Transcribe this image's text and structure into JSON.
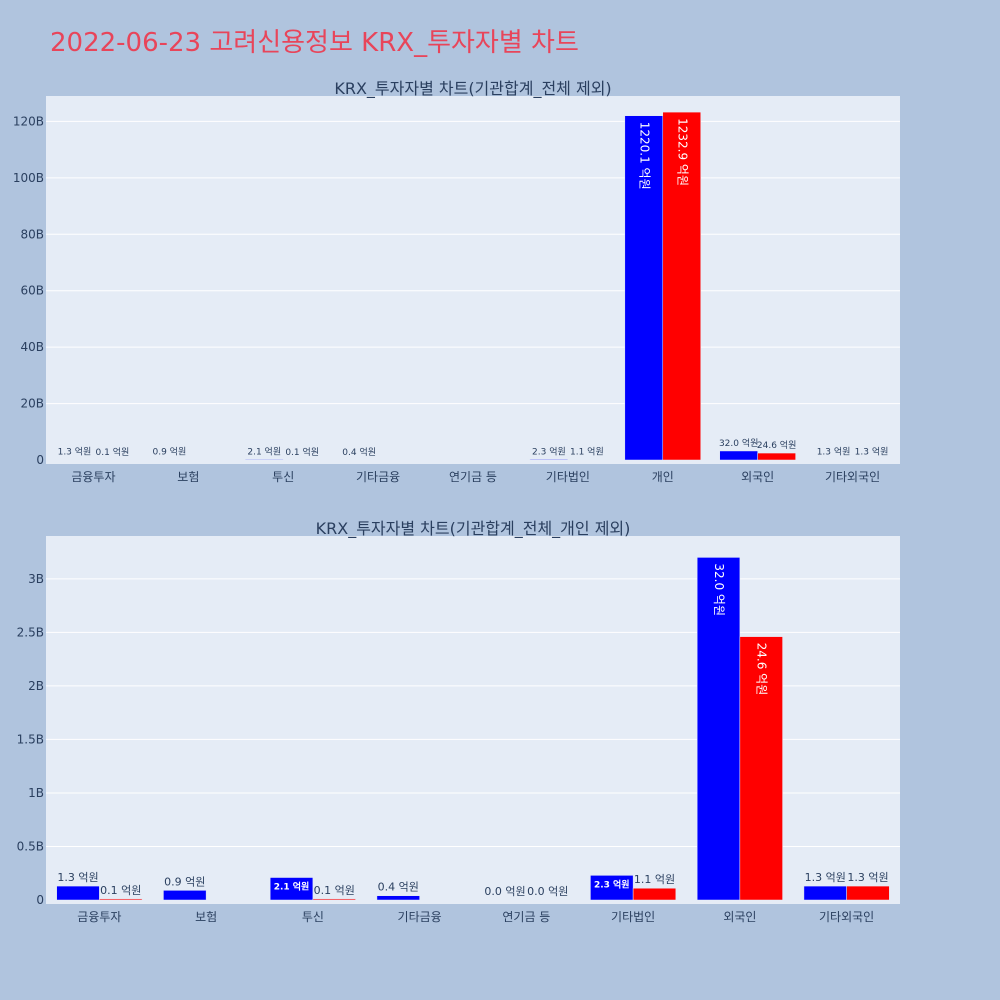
{
  "page": {
    "title": "2022-06-23 고려신용정보 KRX_투자자별 차트"
  },
  "colors": {
    "buy": "#0000ff",
    "sell": "#ff0000",
    "plot_bg": "#e5ecf6",
    "paper_bg": "#b0c4de",
    "title": "#e8455a"
  },
  "chart_data": [
    {
      "type": "bar",
      "title": "KRX_투자자별 차트(기관합계_전체 제외)",
      "categories": [
        "금융투자",
        "보험",
        "투신",
        "기타금융",
        "연기금 등",
        "기타법인",
        "개인",
        "외국인",
        "기타외국인"
      ],
      "series": [
        {
          "values": [
            130000000,
            90000000,
            210000000,
            40000000,
            0,
            230000000,
            122010000000,
            3200000000,
            130000000
          ],
          "labels": [
            "1.3 억원",
            "0.9 억원",
            "2.1 억원",
            "0.4 억원",
            "",
            "2.3 억원",
            "1220.1 억원",
            "32.0 억원",
            "1.3 억원"
          ]
        },
        {
          "values": [
            10000000,
            0,
            10000000,
            0,
            0,
            110000000,
            123290000000,
            2460000000,
            130000000
          ],
          "labels": [
            "0.1 억원",
            "",
            "0.1 억원",
            "",
            "",
            "1.1 억원",
            "1232.9 억원",
            "24.6 억원",
            "1.3 억원"
          ]
        }
      ],
      "yticks": [
        "0",
        "20B",
        "40B",
        "60B",
        "80B",
        "100B",
        "120B"
      ],
      "ytick_values": [
        0,
        20000000000,
        40000000000,
        60000000000,
        80000000000,
        100000000000,
        120000000000
      ],
      "ylim": [
        0,
        129000000000
      ],
      "grid": true
    },
    {
      "type": "bar",
      "title": "KRX_투자자별 차트(기관합계_전체_개인 제외)",
      "categories": [
        "금융투자",
        "보험",
        "투신",
        "기타금융",
        "연기금 등",
        "기타법인",
        "외국인",
        "기타외국인"
      ],
      "series": [
        {
          "values": [
            130000000,
            90000000,
            210000000,
            40000000,
            0,
            230000000,
            3200000000,
            130000000
          ],
          "labels": [
            "1.3 억원",
            "0.9 억원",
            "2.1 억원",
            "0.4 억원",
            "0.0 억원",
            "2.3 억원",
            "32.0 억원",
            "1.3 억원"
          ]
        },
        {
          "values": [
            10000000,
            0,
            10000000,
            0,
            0,
            110000000,
            2460000000,
            130000000
          ],
          "labels": [
            "0.1 억원",
            "",
            "0.1 억원",
            "",
            "0.0 억원",
            "1.1 억원",
            "24.6 억원",
            "1.3 억원"
          ]
        }
      ],
      "yticks": [
        "0",
        "0.5B",
        "1B",
        "1.5B",
        "2B",
        "2.5B",
        "3B"
      ],
      "ytick_values": [
        0,
        500000000,
        1000000000,
        1500000000,
        2000000000,
        2500000000,
        3000000000
      ],
      "ylim": [
        0,
        3400000000
      ],
      "grid": true
    }
  ]
}
